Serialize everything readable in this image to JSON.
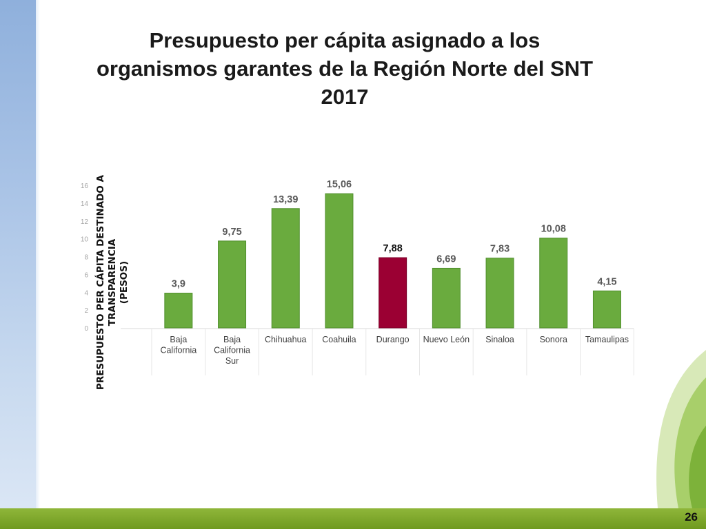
{
  "slide": {
    "title_lines": [
      "Presupuesto per cápita asignado a los",
      "organismos garantes de la Región Norte del SNT",
      "2017"
    ],
    "page_number": "26"
  },
  "colors": {
    "bar_default": "#6aab3e",
    "bar_highlight": "#9b0033",
    "accent_band": "#8fb63a",
    "side_band": "#a9c3e6"
  },
  "chart_data": {
    "type": "bar",
    "title": "",
    "ylabel_lines": [
      "PRESUPUESTO PER CÁPITA DESTINADO A TRANSPARENCIA",
      "(PESOS)"
    ],
    "xlabel": "",
    "ylim": [
      0,
      16
    ],
    "yticks": [
      "0",
      "2",
      "4",
      "6",
      "8",
      "10",
      "12",
      "14",
      "16"
    ],
    "categories": [
      [
        "Baja",
        "California"
      ],
      [
        "Baja",
        "California",
        "Sur"
      ],
      [
        "Chihuahua"
      ],
      [
        "Coahuila"
      ],
      [
        "Durango"
      ],
      [
        "Nuevo León"
      ],
      [
        "Sinaloa"
      ],
      [
        "Sonora"
      ],
      [
        "Tamaulipas"
      ]
    ],
    "values": [
      3.9,
      9.75,
      13.39,
      15.06,
      7.88,
      6.69,
      7.83,
      10.08,
      4.15
    ],
    "value_labels": [
      "3,9",
      "9,75",
      "13,39",
      "15,06",
      "7,88",
      "6,69",
      "7,83",
      "10,08",
      "4,15"
    ],
    "highlight_index": 4,
    "grid": false,
    "legend": "none"
  }
}
